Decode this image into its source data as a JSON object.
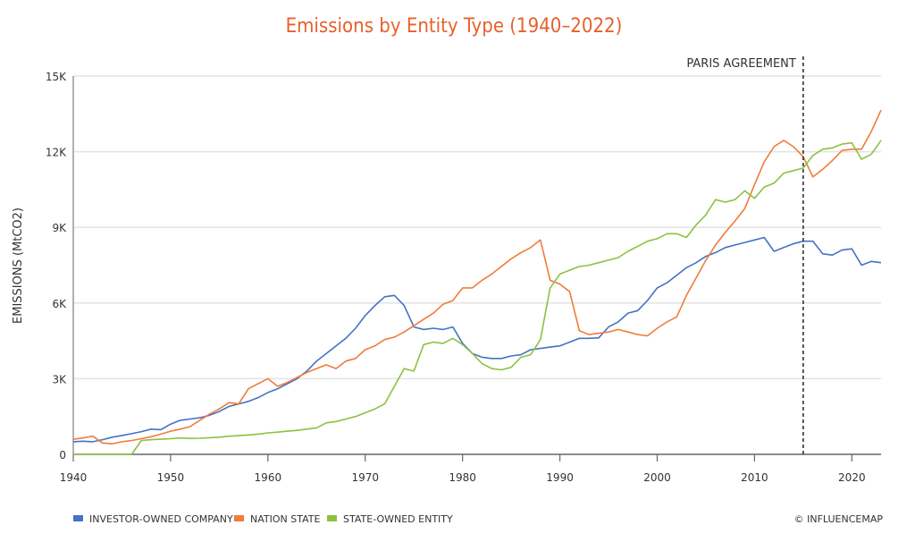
{
  "chart_data": {
    "type": "line",
    "title": "Emissions by Entity Type (1940–2022)",
    "xlabel": "",
    "ylabel": "EMISSIONS (MtCO2)",
    "xlim": [
      1940,
      2023
    ],
    "ylim": [
      0,
      15000
    ],
    "grid": true,
    "x_ticks": [
      "1940",
      "1950",
      "1960",
      "1970",
      "1980",
      "1990",
      "2000",
      "2010",
      "2020"
    ],
    "y_ticks": [
      "0",
      "3K",
      "6K",
      "9K",
      "12K",
      "15K"
    ],
    "legend_position": "bottom-left",
    "annotation": {
      "label": "PARIS AGREEMENT",
      "x": 2015
    },
    "credit": "© INFLUENCEMAP",
    "x_start": 1940,
    "series": [
      {
        "name": "INVESTOR-OWNED COMPANY",
        "color": "#4472c4",
        "values": [
          500,
          520,
          500,
          580,
          680,
          750,
          820,
          900,
          1000,
          980,
          1200,
          1350,
          1400,
          1450,
          1550,
          1700,
          1900,
          2000,
          2100,
          2250,
          2450,
          2600,
          2800,
          3000,
          3300,
          3700,
          4000,
          4300,
          4600,
          5000,
          5500,
          5900,
          6250,
          6300,
          5900,
          5050,
          4950,
          5000,
          4950,
          5050,
          4400,
          4000,
          3850,
          3800,
          3800,
          3900,
          3950,
          4150,
          4200,
          4250,
          4300,
          4450,
          4600,
          4600,
          4620,
          5050,
          5250,
          5600,
          5700,
          6100,
          6600,
          6800,
          7100,
          7400,
          7600,
          7850,
          8000,
          8200,
          8300,
          8400,
          8500,
          8600,
          8050,
          8200,
          8350,
          8450,
          8450,
          7950,
          7900,
          8100,
          8150,
          7500,
          7650,
          7600
        ]
      },
      {
        "name": "NATION STATE",
        "color": "#f07c3a",
        "values": [
          600,
          650,
          720,
          450,
          420,
          500,
          550,
          620,
          700,
          800,
          920,
          1000,
          1100,
          1350,
          1600,
          1800,
          2050,
          2000,
          2600,
          2800,
          3000,
          2700,
          2850,
          3050,
          3250,
          3400,
          3550,
          3400,
          3700,
          3800,
          4150,
          4300,
          4550,
          4650,
          4850,
          5100,
          5350,
          5600,
          5950,
          6100,
          6600,
          6600,
          6900,
          7150,
          7450,
          7750,
          8000,
          8200,
          8500,
          6900,
          6750,
          6450,
          4900,
          4750,
          4800,
          4850,
          4950,
          4850,
          4750,
          4700,
          5000,
          5250,
          5450,
          6300,
          7000,
          7700,
          8300,
          8800,
          9250,
          9750,
          10700,
          11600,
          12200,
          12450,
          12200,
          11800,
          11000,
          11300,
          11650,
          12050,
          12100,
          12100,
          12800,
          13650
        ]
      },
      {
        "name": "STATE-OWNED ENTITY",
        "color": "#8cc23f",
        "values": [
          0,
          0,
          0,
          0,
          0,
          0,
          0,
          550,
          580,
          600,
          620,
          650,
          630,
          640,
          660,
          680,
          720,
          740,
          770,
          800,
          850,
          880,
          920,
          950,
          1000,
          1050,
          1250,
          1300,
          1400,
          1500,
          1650,
          1800,
          2000,
          2700,
          3400,
          3300,
          4350,
          4450,
          4400,
          4600,
          4350,
          4000,
          3600,
          3400,
          3350,
          3450,
          3850,
          3950,
          4550,
          6600,
          7150,
          7300,
          7450,
          7500,
          7600,
          7700,
          7800,
          8050,
          8250,
          8450,
          8550,
          8750,
          8750,
          8600,
          9100,
          9500,
          10100,
          10000,
          10100,
          10450,
          10150,
          10600,
          10750,
          11150,
          11250,
          11350,
          11850,
          12100,
          12150,
          12300,
          12350,
          11700,
          11900,
          12450
        ]
      }
    ]
  }
}
